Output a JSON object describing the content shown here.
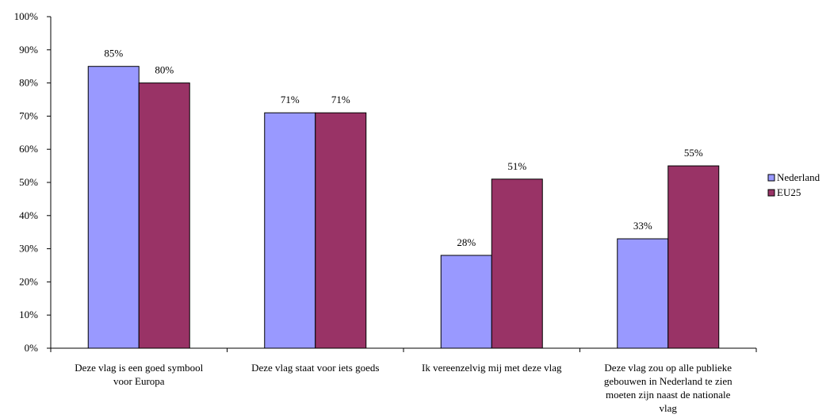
{
  "chart_data": {
    "type": "bar",
    "title": "",
    "xlabel": "",
    "ylabel": "",
    "ylim": [
      0,
      100
    ],
    "yticks": [
      "0%",
      "10%",
      "20%",
      "30%",
      "40%",
      "50%",
      "60%",
      "70%",
      "80%",
      "90%",
      "100%"
    ],
    "grid": false,
    "legend_position": "right",
    "categories": [
      [
        "Deze vlag is een goed symbool",
        "voor Europa"
      ],
      [
        "Deze vlag staat voor iets goeds"
      ],
      [
        "Ik vereenzelvig mij met deze vlag"
      ],
      [
        "Deze vlag zou op alle publieke",
        "gebouwen in Nederland te zien",
        "moeten zijn naast de nationale",
        "vlag"
      ]
    ],
    "series": [
      {
        "name": "Nederland",
        "color": "#9999ff",
        "values": [
          85,
          71,
          28,
          33
        ],
        "labels": [
          "85%",
          "71%",
          "28%",
          "33%"
        ]
      },
      {
        "name": "EU25",
        "color": "#993366",
        "values": [
          80,
          71,
          51,
          55
        ],
        "labels": [
          "80%",
          "71%",
          "51%",
          "55%"
        ]
      }
    ]
  }
}
